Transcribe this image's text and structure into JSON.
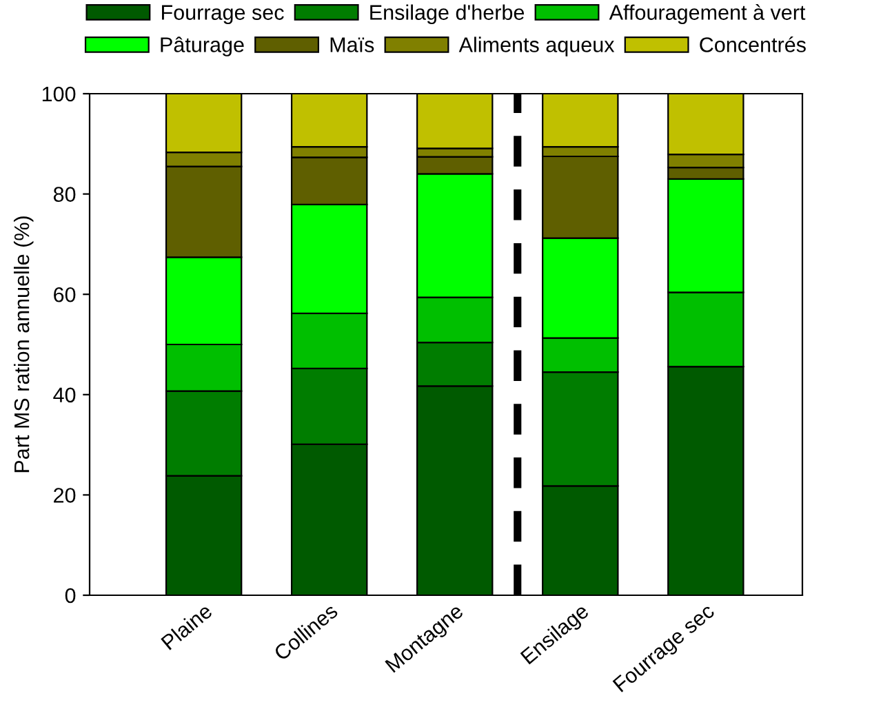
{
  "chart_data": {
    "type": "bar",
    "stacked": true,
    "ylabel": "Part MS ration annuelle (%)",
    "categories": [
      "Plaine",
      "Collines",
      "Montagne",
      "Ensilage",
      "Fourrage sec"
    ],
    "ylim": [
      0,
      100
    ],
    "yticks": [
      0,
      20,
      40,
      60,
      80,
      100
    ],
    "grid": false,
    "legend": "top",
    "series": [
      {
        "name": "Fourrage sec",
        "color": "#005a00",
        "values": [
          23.8,
          30.1,
          41.7,
          21.8,
          45.6
        ]
      },
      {
        "name": "Ensilage d'herbe",
        "color": "#007d00",
        "values": [
          16.9,
          15.1,
          8.7,
          22.7,
          0
        ]
      },
      {
        "name": "Affouragement à vert",
        "color": "#00bf00",
        "values": [
          9.3,
          11.0,
          9.0,
          6.8,
          14.8
        ]
      },
      {
        "name": "Pâturage",
        "color": "#00ff00",
        "values": [
          17.4,
          21.7,
          24.6,
          19.9,
          22.6
        ]
      },
      {
        "name": "Maïs",
        "color": "#5f5f00",
        "values": [
          18.1,
          9.4,
          3.4,
          16.3,
          2.3
        ]
      },
      {
        "name": "Aliments aqueux",
        "color": "#808000",
        "values": [
          2.8,
          2.1,
          1.7,
          1.9,
          2.6
        ]
      },
      {
        "name": "Concentrés",
        "color": "#c0c000",
        "values": [
          11.7,
          10.6,
          10.9,
          10.6,
          12.1
        ]
      }
    ]
  }
}
